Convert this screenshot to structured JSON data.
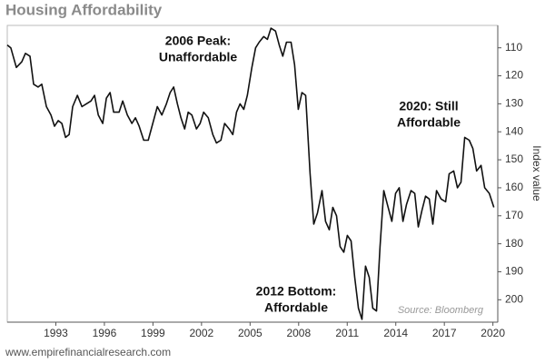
{
  "chart_data": {
    "type": "line",
    "title": "Housing Affordability",
    "y_label": "Index value",
    "source": "Source: Bloomberg",
    "footer": "www.empirefinancialresearch.com",
    "annotations": [
      [
        "2006 Peak:",
        "Unaffordable"
      ],
      [
        "2020: Still",
        "Affordable"
      ],
      [
        "2012 Bottom:",
        "Affordable"
      ]
    ],
    "y_inverted": true,
    "y_axis_side": "right",
    "color": "#111111",
    "xlim": [
      1990,
      2020.3
    ],
    "xticks": [
      1993,
      1996,
      1999,
      2002,
      2005,
      2008,
      2011,
      2014,
      2017,
      2020
    ],
    "ylim": [
      102,
      208
    ],
    "yticks": [
      110,
      120,
      130,
      140,
      150,
      160,
      170,
      180,
      190,
      200
    ],
    "series": [
      {
        "name": "Housing Affordability Index",
        "x": [
          1990.0,
          1990.22,
          1990.56,
          1990.9,
          1991.12,
          1991.4,
          1991.63,
          1991.91,
          1992.13,
          1992.42,
          1992.7,
          1992.92,
          1993.15,
          1993.37,
          1993.6,
          1993.82,
          1994.04,
          1994.33,
          1994.61,
          1994.89,
          1995.17,
          1995.39,
          1995.62,
          1995.9,
          1996.12,
          1996.35,
          1996.57,
          1996.91,
          1997.13,
          1997.42,
          1997.7,
          1997.92,
          1998.15,
          1998.43,
          1998.71,
          1998.99,
          1999.27,
          1999.55,
          1999.83,
          2000.06,
          2000.28,
          2000.51,
          2000.73,
          2000.96,
          2001.18,
          2001.4,
          2001.69,
          2001.91,
          2002.13,
          2002.42,
          2002.7,
          2002.92,
          2003.2,
          2003.43,
          2003.71,
          2003.93,
          2004.16,
          2004.38,
          2004.61,
          2004.83,
          2005.11,
          2005.34,
          2005.56,
          2005.84,
          2006.07,
          2006.29,
          2006.57,
          2006.8,
          2007.02,
          2007.25,
          2007.53,
          2007.75,
          2007.98,
          2008.2,
          2008.43,
          2008.71,
          2008.93,
          2009.16,
          2009.44,
          2009.66,
          2009.89,
          2010.11,
          2010.34,
          2010.56,
          2010.79,
          2011.01,
          2011.24,
          2011.46,
          2011.69,
          2011.91,
          2012.13,
          2012.36,
          2012.58,
          2012.81,
          2013.03,
          2013.26,
          2013.48,
          2013.76,
          2013.99,
          2014.21,
          2014.44,
          2014.66,
          2014.94,
          2015.17,
          2015.39,
          2015.62,
          2015.84,
          2016.07,
          2016.29,
          2016.52,
          2016.8,
          2017.08,
          2017.3,
          2017.58,
          2017.81,
          2018.03,
          2018.26,
          2018.54,
          2018.76,
          2018.99,
          2019.27,
          2019.49,
          2019.78,
          2020.06
        ],
        "values": [
          109,
          110,
          117,
          115,
          112,
          113,
          123,
          124,
          123,
          131,
          134,
          138,
          136,
          137,
          142,
          141,
          131,
          127,
          131,
          130,
          129,
          127,
          134,
          137,
          128,
          126,
          133,
          133,
          129,
          134,
          137,
          135,
          138,
          143,
          143,
          137,
          131,
          134,
          130,
          126,
          124,
          130,
          135,
          139,
          133,
          134,
          139,
          137,
          133,
          135,
          141,
          144,
          143,
          137,
          139,
          141,
          133,
          130,
          132,
          127,
          117,
          110,
          108,
          106,
          107,
          103,
          104,
          109,
          113,
          108,
          108,
          116,
          132,
          126,
          127,
          155,
          173,
          169,
          161,
          172,
          175,
          167,
          170,
          181,
          183,
          177,
          179,
          192,
          203,
          207,
          188,
          192,
          203,
          204,
          181,
          161,
          166,
          172,
          162,
          160,
          172,
          166,
          161,
          162,
          174,
          168,
          163,
          164,
          173,
          161,
          164,
          165,
          155,
          154,
          160,
          158,
          142,
          143,
          146,
          154,
          152,
          160,
          162,
          167
        ]
      }
    ]
  }
}
